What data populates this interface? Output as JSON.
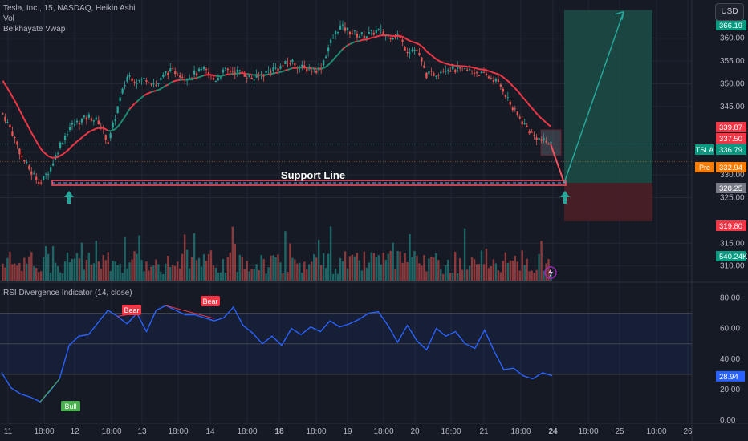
{
  "legend": {
    "symbol_line": "Tesla, Inc., 15, NASDAQ, Heikin Ashi",
    "vol": "Vol",
    "vwap": "Belkhayate Vwap"
  },
  "currency_button": "USD",
  "rsi_title": "RSI Divergence Indicator (14, close)",
  "colors": {
    "background": "#161a25",
    "bull_candle": "#26a69a",
    "bear_candle": "#ef5350",
    "vwap_bear": "#f23645",
    "vwap_bull": "#1e8c6e",
    "rsi_line": "#2962ff",
    "support": "#f7525f",
    "target_zone": "#1b4d46",
    "stop_zone": "#4a1f27",
    "projection": "#26a69a"
  },
  "price_axis": {
    "ticks": [
      "360.00",
      "355.00",
      "350.00",
      "345.00",
      "335.00",
      "330.00",
      "325.00",
      "315.00",
      "310.00"
    ],
    "ymin": 308,
    "ymax": 367,
    "badges": [
      {
        "label": "",
        "value": "366.19",
        "color": "#089981"
      },
      {
        "label": "",
        "value": "339.87",
        "color": "#f23645"
      },
      {
        "label": "",
        "value": "337.50",
        "color": "#f23645"
      },
      {
        "label": "TSLA",
        "value": "336.79",
        "color": "#089981"
      },
      {
        "label": "Pre",
        "value": "332.94",
        "color": "#f57c00"
      },
      {
        "label": "",
        "value": "328.25",
        "color": "#787b86"
      },
      {
        "label": "",
        "value": "319.80",
        "color": "#f23645"
      },
      {
        "label": "",
        "value": "540.24K",
        "color": "#089981"
      }
    ]
  },
  "rsi_axis": {
    "ticks": [
      "80.00",
      "60.00",
      "40.00",
      "20.00",
      "0.00"
    ],
    "badge": {
      "value": "28.94",
      "color": "#2962ff"
    },
    "upper_band": 70,
    "mid_band": 50,
    "lower_band": 30
  },
  "time_axis": [
    "11",
    "18:00",
    "12",
    "18:00",
    "13",
    "18:00",
    "14",
    "18:00",
    "18",
    "18:00",
    "19",
    "18:00",
    "20",
    "18:00",
    "21",
    "18:00",
    "24",
    "18:00",
    "25",
    "18:00",
    "26"
  ],
  "annotations": {
    "support_label": "Support Line",
    "support_price": 328.25,
    "bear_label": "Bear",
    "bull_label": "Bull"
  },
  "chart_data": {
    "type": "candlestick",
    "price_series": [
      343.5,
      339.2,
      333.8,
      330.4,
      328.3,
      331.8,
      336.9,
      340.6,
      341.8,
      342.8,
      341.6,
      337.0,
      345.3,
      352.0,
      350.6,
      351.2,
      349.6,
      352.6,
      352.7,
      351.5,
      352.3,
      353.0,
      350.7,
      352.8,
      352.9,
      352.3,
      351.0,
      352.1,
      353.2,
      353.8,
      355.0,
      353.6,
      353.1,
      353.2,
      358.8,
      362.6,
      361.6,
      360.6,
      360.8,
      361.7,
      360.4,
      360.9,
      357.4,
      357.6,
      352.0,
      352.3,
      353.6,
      353.1,
      353.0,
      352.8,
      351.9,
      351.1,
      348.9,
      344.5,
      341.7,
      339.0,
      337.5,
      336.8
    ],
    "rsi_series": [
      31,
      21,
      17,
      15,
      12,
      19,
      27,
      49,
      55,
      56,
      64,
      72,
      68,
      63,
      70,
      58,
      72,
      75,
      72,
      69,
      69,
      67,
      65,
      67,
      74,
      62,
      57,
      50,
      55,
      49,
      60,
      56,
      61,
      58,
      65,
      61,
      63,
      66,
      70,
      71,
      62,
      51,
      62,
      52,
      46,
      60,
      55,
      58,
      50,
      47,
      59,
      45,
      33,
      34,
      29,
      27,
      31,
      29
    ],
    "rsi_range": [
      0,
      85
    ],
    "support_price": 328.25,
    "target_price": 366.19,
    "stop_price": 319.8,
    "entry_price": 328.25
  }
}
